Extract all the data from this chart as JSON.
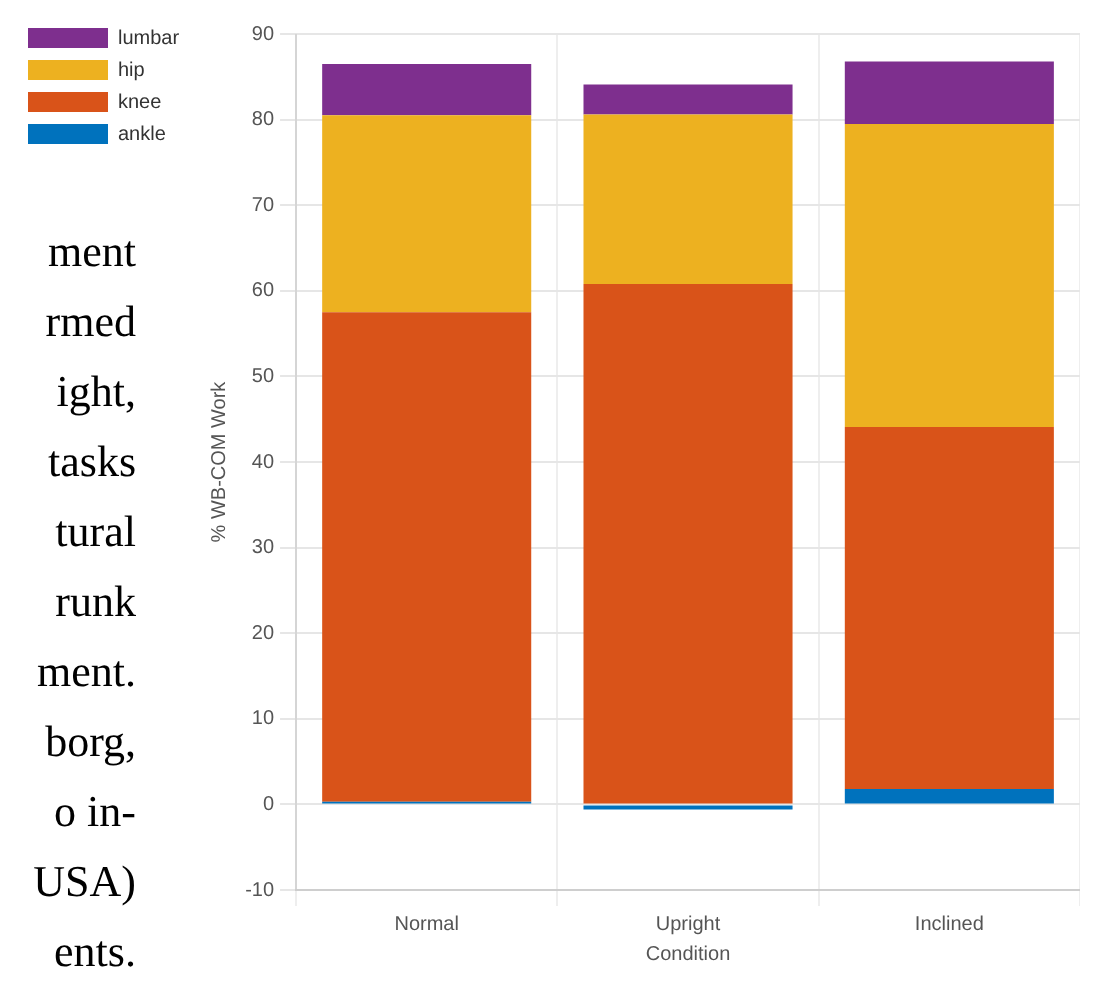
{
  "chart_data": {
    "type": "bar",
    "stacked": true,
    "xlabel": "Condition",
    "ylabel": "% WB-COM Work",
    "categories": [
      "Normal",
      "Upright",
      "Inclined"
    ],
    "series": [
      {
        "name": "ankle",
        "color": "#0072bd",
        "values": [
          0.3,
          -0.6,
          1.8
        ]
      },
      {
        "name": "knee",
        "color": "#d95319",
        "values": [
          57.2,
          60.8,
          42.3
        ]
      },
      {
        "name": "hip",
        "color": "#edb120",
        "values": [
          23,
          19.8,
          35.4
        ]
      },
      {
        "name": "lumbar",
        "color": "#7e2f8e",
        "values": [
          6,
          3.5,
          7.3
        ]
      }
    ],
    "ylim": [
      -10,
      90
    ],
    "yticks": [
      -10,
      0,
      10,
      20,
      30,
      40,
      50,
      60,
      70,
      80,
      90
    ],
    "grid": true,
    "legend": "top left",
    "annotations": [
      "ment",
      "rmed",
      "ight,",
      "tasks",
      "tural",
      "runk",
      "ment.",
      "borg,",
      "o in-",
      "USA)",
      "ents."
    ]
  }
}
